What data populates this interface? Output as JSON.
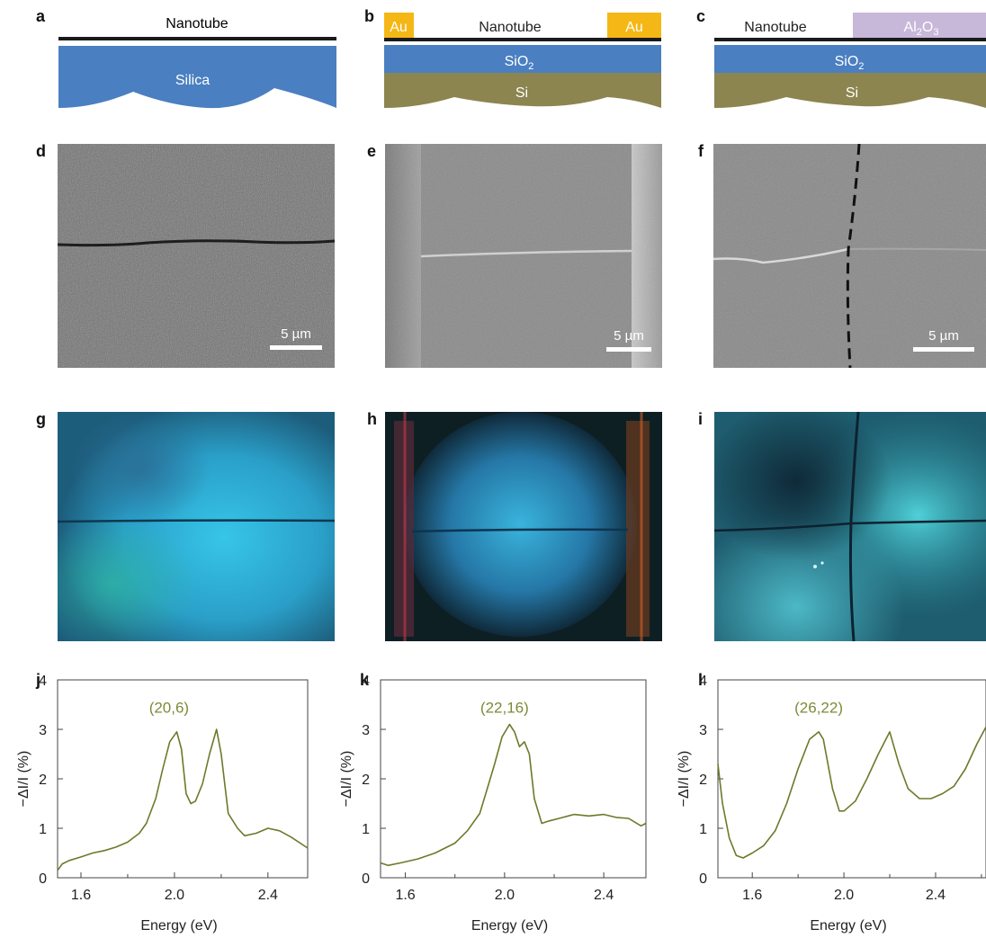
{
  "panel_labels": {
    "a": "a",
    "b": "b",
    "c": "c",
    "d": "d",
    "e": "e",
    "f": "f",
    "g": "g",
    "h": "h",
    "i": "i",
    "j": "j",
    "k": "k",
    "l": "l"
  },
  "schematics": {
    "a": {
      "tube": "Nanotube",
      "substrate": "Silica"
    },
    "b": {
      "left_contact": "Au",
      "right_contact": "Au",
      "tube": "Nanotube",
      "oxide": "SiO",
      "oxide_sub": "2",
      "base": "Si"
    },
    "c": {
      "tube": "Nanotube",
      "cover": "Al",
      "cover_sub1": "2",
      "cover_mid": "O",
      "cover_sub2": "3",
      "oxide": "SiO",
      "oxide_sub": "2",
      "base": "Si"
    }
  },
  "scale_bars": {
    "d": "5 µm",
    "e": "5 µm",
    "f": "5 µm"
  },
  "colors": {
    "silica": "#4a7fc1",
    "sio2": "#4a7fc1",
    "si": "#8d8550",
    "au": "#f5b716",
    "al2o3": "#c7b7d9",
    "tube": "#1a1a1a",
    "spectrum": "#6b7a2a",
    "label_green": "#7e8a38"
  },
  "chart_data": [
    {
      "type": "line",
      "panel": "j",
      "annotation": "(20,6)",
      "xlabel": "Energy (eV)",
      "ylabel": "−ΔI/I (%)",
      "xlim": [
        1.5,
        2.57
      ],
      "ylim": [
        0,
        4
      ],
      "xticks": [
        1.6,
        2.0,
        2.4
      ],
      "yticks": [
        0,
        1,
        2,
        3,
        4
      ],
      "x": [
        1.5,
        1.52,
        1.55,
        1.6,
        1.65,
        1.7,
        1.75,
        1.8,
        1.85,
        1.88,
        1.92,
        1.95,
        1.98,
        2.01,
        2.03,
        2.05,
        2.07,
        2.09,
        2.12,
        2.15,
        2.18,
        2.2,
        2.23,
        2.27,
        2.3,
        2.35,
        2.4,
        2.45,
        2.5,
        2.57
      ],
      "y": [
        0.15,
        0.28,
        0.35,
        0.42,
        0.5,
        0.55,
        0.62,
        0.72,
        0.9,
        1.1,
        1.6,
        2.2,
        2.75,
        2.95,
        2.6,
        1.7,
        1.5,
        1.55,
        1.9,
        2.5,
        3.0,
        2.5,
        1.3,
        1.0,
        0.85,
        0.9,
        1.0,
        0.95,
        0.82,
        0.6
      ]
    },
    {
      "type": "line",
      "panel": "k",
      "annotation": "(22,16)",
      "xlabel": "Energy (eV)",
      "ylabel": "−ΔI/I (%)",
      "xlim": [
        1.5,
        2.57
      ],
      "ylim": [
        0,
        4
      ],
      "xticks": [
        1.6,
        2.0,
        2.4
      ],
      "yticks": [
        0,
        1,
        2,
        3,
        4
      ],
      "x": [
        1.5,
        1.53,
        1.58,
        1.65,
        1.72,
        1.8,
        1.85,
        1.9,
        1.93,
        1.96,
        1.99,
        2.02,
        2.04,
        2.06,
        2.08,
        2.1,
        2.12,
        2.15,
        2.18,
        2.22,
        2.28,
        2.34,
        2.4,
        2.45,
        2.5,
        2.55,
        2.57
      ],
      "y": [
        0.3,
        0.25,
        0.3,
        0.38,
        0.5,
        0.7,
        0.95,
        1.3,
        1.8,
        2.3,
        2.85,
        3.1,
        2.95,
        2.65,
        2.75,
        2.5,
        1.6,
        1.1,
        1.15,
        1.2,
        1.28,
        1.25,
        1.28,
        1.22,
        1.2,
        1.05,
        1.1
      ]
    },
    {
      "type": "line",
      "panel": "l",
      "annotation": "(26,22)",
      "xlabel": "Energy (eV)",
      "ylabel": "−ΔI/I (%)",
      "xlim": [
        1.45,
        2.62
      ],
      "ylim": [
        0,
        4
      ],
      "xticks": [
        1.6,
        2.0,
        2.4
      ],
      "yticks": [
        0,
        1,
        2,
        3,
        4
      ],
      "x": [
        1.45,
        1.47,
        1.5,
        1.53,
        1.56,
        1.6,
        1.65,
        1.7,
        1.75,
        1.8,
        1.85,
        1.89,
        1.91,
        1.95,
        1.98,
        2.0,
        2.05,
        2.1,
        2.15,
        2.2,
        2.24,
        2.28,
        2.33,
        2.38,
        2.43,
        2.48,
        2.53,
        2.58,
        2.62
      ],
      "y": [
        2.3,
        1.5,
        0.8,
        0.45,
        0.4,
        0.5,
        0.65,
        0.95,
        1.5,
        2.2,
        2.8,
        2.95,
        2.8,
        1.8,
        1.35,
        1.35,
        1.55,
        2.0,
        2.5,
        2.95,
        2.3,
        1.8,
        1.6,
        1.6,
        1.7,
        1.85,
        2.2,
        2.7,
        3.05
      ]
    }
  ]
}
